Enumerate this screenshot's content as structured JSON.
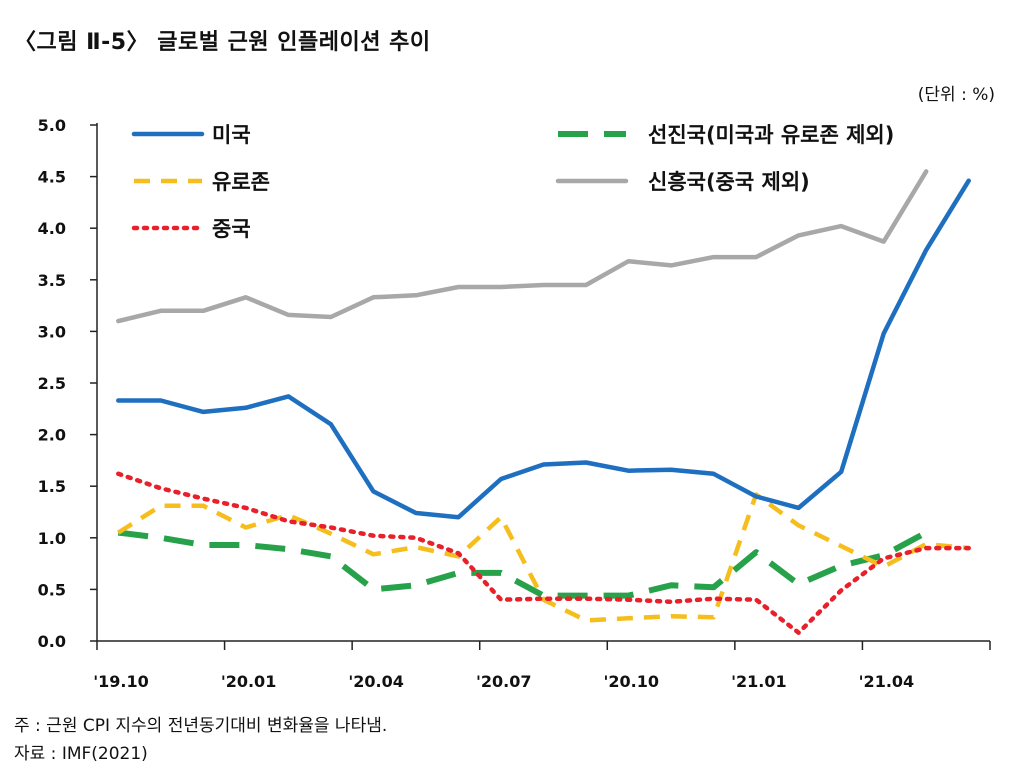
{
  "title": "〈그림 Ⅱ-5〉 글로벌 근원 인플레이션 추이",
  "unit": "(단위 : %)",
  "note": "주 : 근원 CPI 지수의 전년동기대비 변화율을 나타냄.",
  "source": "자료 : IMF(2021)",
  "chart_data": {
    "type": "line",
    "x_tick_labels": [
      "'19.10",
      "'20.01",
      "'20.04",
      "'20.07",
      "'20.10",
      "'21.01",
      "'21.04"
    ],
    "x": [
      "2019-10",
      "2019-11",
      "2019-12",
      "2020-01",
      "2020-02",
      "2020-03",
      "2020-04",
      "2020-05",
      "2020-06",
      "2020-07",
      "2020-08",
      "2020-09",
      "2020-10",
      "2020-11",
      "2020-12",
      "2021-01",
      "2021-02",
      "2021-03",
      "2021-04",
      "2021-05",
      "2021-06"
    ],
    "ylim": [
      0,
      5.0
    ],
    "y_tick_labels": [
      "0.0",
      "0.5",
      "1.0",
      "1.5",
      "2.0",
      "2.5",
      "3.0",
      "3.5",
      "4.0",
      "4.5",
      "5.0"
    ],
    "series": [
      {
        "name": "미국",
        "color": "#1f6fc1",
        "dash": "solid",
        "values": [
          2.33,
          2.33,
          2.22,
          2.26,
          2.37,
          2.1,
          1.45,
          1.24,
          1.2,
          1.57,
          1.71,
          1.73,
          1.65,
          1.66,
          1.62,
          1.4,
          1.29,
          1.64,
          2.98,
          3.79,
          4.46
        ]
      },
      {
        "name": "유로존",
        "color": "#f5be1d",
        "dash": "dash",
        "values": [
          1.05,
          1.31,
          1.31,
          1.1,
          1.22,
          1.04,
          0.84,
          0.91,
          0.82,
          1.2,
          0.4,
          0.2,
          0.22,
          0.24,
          0.23,
          1.42,
          1.12,
          0.92,
          0.72,
          0.94,
          0.9
        ]
      },
      {
        "name": "중국",
        "color": "#e8202a",
        "dash": "dot",
        "values": [
          1.62,
          1.48,
          1.38,
          1.29,
          1.16,
          1.1,
          1.02,
          1.0,
          0.85,
          0.4,
          0.41,
          0.41,
          0.4,
          0.38,
          0.41,
          0.4,
          0.08,
          0.49,
          0.8,
          0.9,
          0.9
        ]
      },
      {
        "name": "선진국(미국과 유로존 제외)",
        "color": "#27a24a",
        "dash": "longdash",
        "values": [
          1.05,
          1.0,
          0.93,
          0.93,
          0.89,
          0.82,
          0.5,
          0.54,
          0.66,
          0.66,
          0.44,
          0.44,
          0.44,
          0.54,
          0.52,
          0.86,
          0.55,
          0.73,
          0.83,
          1.05,
          null
        ]
      },
      {
        "name": "신흥국(중국 제외)",
        "color": "#a8a8a8",
        "dash": "solid",
        "values": [
          3.1,
          3.2,
          3.2,
          3.33,
          3.16,
          3.14,
          3.33,
          3.35,
          3.43,
          3.43,
          3.45,
          3.45,
          3.68,
          3.64,
          3.72,
          3.72,
          3.93,
          4.02,
          3.87,
          4.55,
          null
        ]
      }
    ]
  }
}
